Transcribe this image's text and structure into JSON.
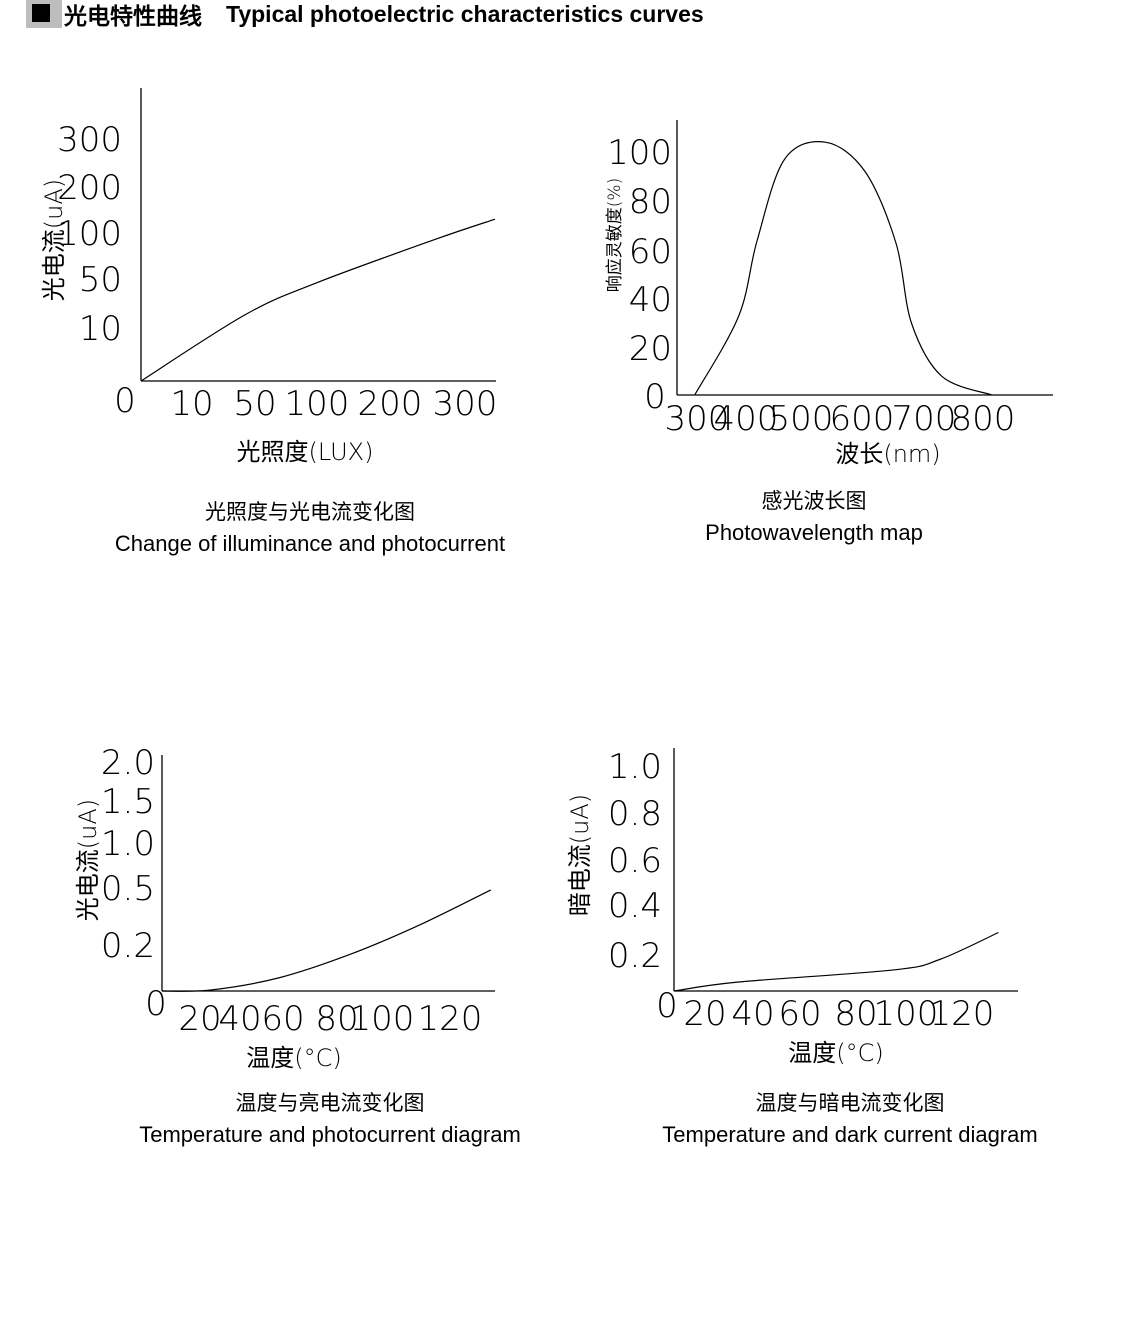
{
  "header": {
    "cn": "光电特性曲线",
    "en": "Typical photoelectric characteristics curves"
  },
  "chart_data": [
    {
      "type": "line",
      "caption_cn": "光照度与光电流变化图",
      "caption_en": "Change of illuminance and photocurrent",
      "xlabel": "光照度(LUX)",
      "ylabel": "光电流(uA)",
      "origin_label": "0",
      "xticks": [
        "10",
        "50",
        "100",
        "200",
        "300"
      ],
      "xtick_values": [
        10,
        50,
        100,
        200,
        300
      ],
      "yticks": [
        "10",
        "50",
        "100",
        "200",
        "300"
      ],
      "ytick_values": [
        10,
        50,
        100,
        200,
        300
      ],
      "series": [
        {
          "x": [
            0,
            44,
            100,
            260,
            340
          ],
          "y": [
            0,
            21,
            47,
            93,
            130
          ]
        }
      ]
    },
    {
      "type": "line",
      "caption_cn": "感光波长图",
      "caption_en": "Photowavelength map",
      "xlabel": "波长(nm)",
      "ylabel": "响应灵敏度(%)",
      "origin_label": "0",
      "xticks": [
        "300",
        "400",
        "500",
        "600",
        "700",
        "800"
      ],
      "xtick_values": [
        300,
        400,
        500,
        600,
        700,
        800
      ],
      "yticks": [
        "20",
        "40",
        "60",
        "80",
        "100"
      ],
      "ytick_values": [
        20,
        40,
        60,
        80,
        100
      ],
      "series": [
        {
          "x": [
            265,
            385,
            420,
            470,
            540,
            605,
            655,
            680,
            730,
            815
          ],
          "y": [
            0,
            33,
            64,
            97,
            104,
            92,
            63,
            30,
            8,
            0
          ]
        }
      ]
    },
    {
      "type": "line",
      "caption_cn": "温度与亮电流变化图",
      "caption_en": "Temperature and photocurrent diagram",
      "xlabel": "温度(°C)",
      "ylabel": "光电流(uA)",
      "origin_label": "0",
      "xticks": [
        "20",
        "40",
        "60",
        "80",
        "100",
        "120"
      ],
      "xtick_values": [
        20,
        40,
        60,
        80,
        100,
        120
      ],
      "yticks": [
        "0.2",
        "0.5",
        "1.0",
        "1.5",
        "2.0"
      ],
      "ytick_values": [
        0.2,
        0.5,
        1.0,
        1.5,
        2.0
      ],
      "series": [
        {
          "x": [
            0,
            25,
            58,
            86,
            111,
            132
          ],
          "y": [
            0,
            0.004,
            0.057,
            0.16,
            0.305,
            0.49
          ]
        }
      ]
    },
    {
      "type": "line",
      "caption_cn": "温度与暗电流变化图",
      "caption_en": "Temperature and dark current diagram",
      "xlabel": "温度(°C)",
      "ylabel": "暗电流(uA)",
      "origin_label": "0",
      "xticks": [
        "20",
        "40",
        "60",
        "80",
        "100",
        "120"
      ],
      "xtick_values": [
        20,
        40,
        60,
        80,
        100,
        120
      ],
      "yticks": [
        "0.2",
        "0.4",
        "0.6",
        "0.8",
        "1.0"
      ],
      "ytick_values": [
        0.2,
        0.4,
        0.6,
        0.8,
        1.0
      ],
      "series": [
        {
          "x": [
            0,
            34,
            95,
            112,
            133
          ],
          "y": [
            0,
            0.05,
            0.117,
            0.175,
            0.29
          ]
        }
      ]
    }
  ]
}
